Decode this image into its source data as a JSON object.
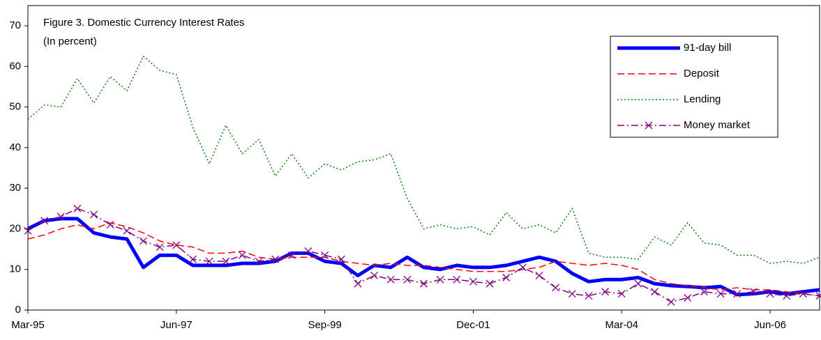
{
  "chart_data": {
    "type": "line",
    "title": "Figure 3. Domestic Currency Interest Rates",
    "subtitle": "(In percent)",
    "categories": [
      "Mar-95",
      null,
      null,
      null,
      null,
      null,
      null,
      null,
      null,
      "Jun-97",
      null,
      null,
      null,
      null,
      null,
      null,
      null,
      null,
      "Sep-99",
      null,
      null,
      null,
      null,
      null,
      null,
      null,
      null,
      "Dec-01",
      null,
      null,
      null,
      null,
      null,
      null,
      null,
      null,
      "Mar-04",
      null,
      null,
      null,
      null,
      null,
      null,
      null,
      null,
      "Jun-06",
      null,
      null,
      null
    ],
    "series": [
      {
        "name": "91-day bill",
        "color": "#0000ff",
        "style": "solid",
        "values": [
          20,
          22,
          22.5,
          22.5,
          19,
          18,
          17.5,
          10.5,
          13.5,
          13.5,
          11,
          11,
          11,
          11.5,
          11.5,
          12,
          14,
          14,
          12,
          11.5,
          8.5,
          11,
          10.5,
          13,
          10.5,
          10,
          11,
          10.5,
          10.5,
          11,
          12,
          13,
          12,
          9,
          7,
          7.5,
          7.5,
          8,
          6.5,
          6,
          5.8,
          5.5,
          5.8,
          3.8,
          4,
          4.5,
          4,
          4.5,
          5
        ]
      },
      {
        "name": "Deposit",
        "color": "#ff0000",
        "style": "dashed",
        "values": [
          17.5,
          18.5,
          20,
          21,
          20,
          21.5,
          20.5,
          19,
          17,
          16,
          15.5,
          14,
          14,
          14.5,
          13,
          12.5,
          13,
          13,
          13,
          12,
          11.5,
          11,
          11.5,
          11,
          11,
          10.5,
          10,
          9.5,
          9.5,
          9.5,
          10,
          10.5,
          12,
          11.5,
          11,
          11.5,
          11,
          10,
          7.5,
          6.5,
          6,
          5.5,
          5,
          5.5,
          5,
          5,
          4.5,
          4,
          3.5
        ]
      },
      {
        "name": "Lending",
        "color": "#008000",
        "style": "dotted",
        "values": [
          47,
          50.5,
          50,
          57,
          51,
          57.5,
          54,
          62.5,
          59,
          58,
          45,
          36,
          45.5,
          38.5,
          42,
          33,
          38.5,
          32.5,
          36,
          34.5,
          36.5,
          37,
          38.5,
          27.5,
          20,
          21,
          20,
          20.5,
          18.5,
          24,
          20,
          21,
          19,
          25,
          14,
          13,
          13,
          12.5,
          18,
          16,
          21.5,
          16.5,
          16,
          13.5,
          13.5,
          11.5,
          12,
          11.5,
          13
        ]
      },
      {
        "name": "Money market",
        "color": "#800080",
        "style": "dashdot",
        "marker": "x",
        "values": [
          19.5,
          22,
          23,
          25,
          23.5,
          21,
          19.5,
          17,
          15.5,
          16,
          12.5,
          12,
          12,
          13.5,
          12,
          12.5,
          13.5,
          14.5,
          13.5,
          12.5,
          6.5,
          8.5,
          7.5,
          7.5,
          6.5,
          7.5,
          7.5,
          7,
          6.5,
          8,
          10.5,
          8.5,
          5.5,
          4,
          3.5,
          4.5,
          4,
          6.5,
          4.5,
          2,
          3,
          4.5,
          4,
          4,
          4.5,
          4,
          3.5,
          4,
          3.5
        ]
      }
    ],
    "ylim": [
      0,
      70
    ],
    "yticks": [
      0,
      10,
      20,
      30,
      40,
      50,
      60,
      70
    ],
    "legend": "top-right"
  }
}
